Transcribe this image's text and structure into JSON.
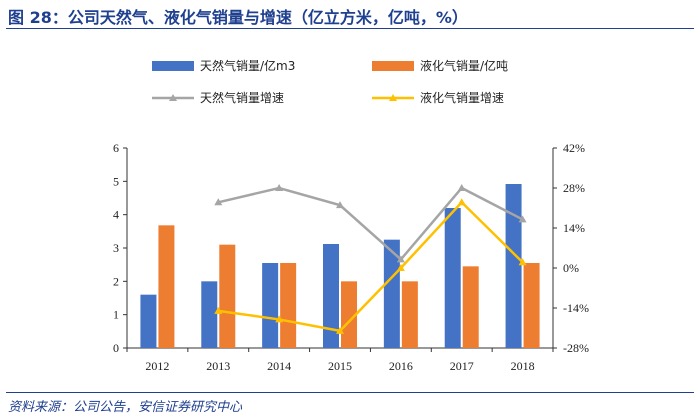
{
  "header": {
    "title": "图 28：公司天然气、液化气销量与增速（亿立方米，亿吨，%）"
  },
  "footer": {
    "source": "资料来源：公司公告，安信证券研究中心"
  },
  "colors": {
    "natural_gas_bar": "#4472c4",
    "lpg_bar": "#ed7d31",
    "natural_gas_growth": "#a5a5a5",
    "lpg_growth": "#ffc000",
    "title": "#1f3f8f"
  },
  "chart_data": {
    "type": "bar+line",
    "title": "公司天然气、液化气销量与增速（亿立方米，亿吨，%）",
    "categories": [
      "2012",
      "2013",
      "2014",
      "2015",
      "2016",
      "2017",
      "2018"
    ],
    "series": [
      {
        "name": "天然气销量/亿m3",
        "type": "bar",
        "axis": "left",
        "values": [
          1.6,
          2.0,
          2.55,
          3.12,
          3.25,
          4.2,
          4.92
        ]
      },
      {
        "name": "液化气销量/亿吨",
        "type": "bar",
        "axis": "left",
        "values": [
          3.68,
          3.1,
          2.55,
          2.0,
          2.0,
          2.45,
          2.55
        ]
      },
      {
        "name": "天然气销量增速",
        "type": "line",
        "axis": "right",
        "marker": "triangle",
        "values": [
          null,
          23,
          28,
          22,
          3,
          28,
          17
        ]
      },
      {
        "name": "液化气销量增速",
        "type": "line",
        "axis": "right",
        "marker": "triangle",
        "values": [
          null,
          -15,
          -18,
          -22,
          0,
          23,
          2
        ]
      }
    ],
    "left_axis": {
      "range": [
        0,
        6
      ],
      "ticks": [
        "0",
        "1",
        "2",
        "3",
        "4",
        "5",
        "6"
      ]
    },
    "right_axis": {
      "range": [
        -28,
        42
      ],
      "ticks": [
        "-28%",
        "-14%",
        "0%",
        "14%",
        "28%",
        "42%"
      ]
    },
    "xlabel": "",
    "ylabel": "",
    "legend_position": "top",
    "grid": false
  }
}
